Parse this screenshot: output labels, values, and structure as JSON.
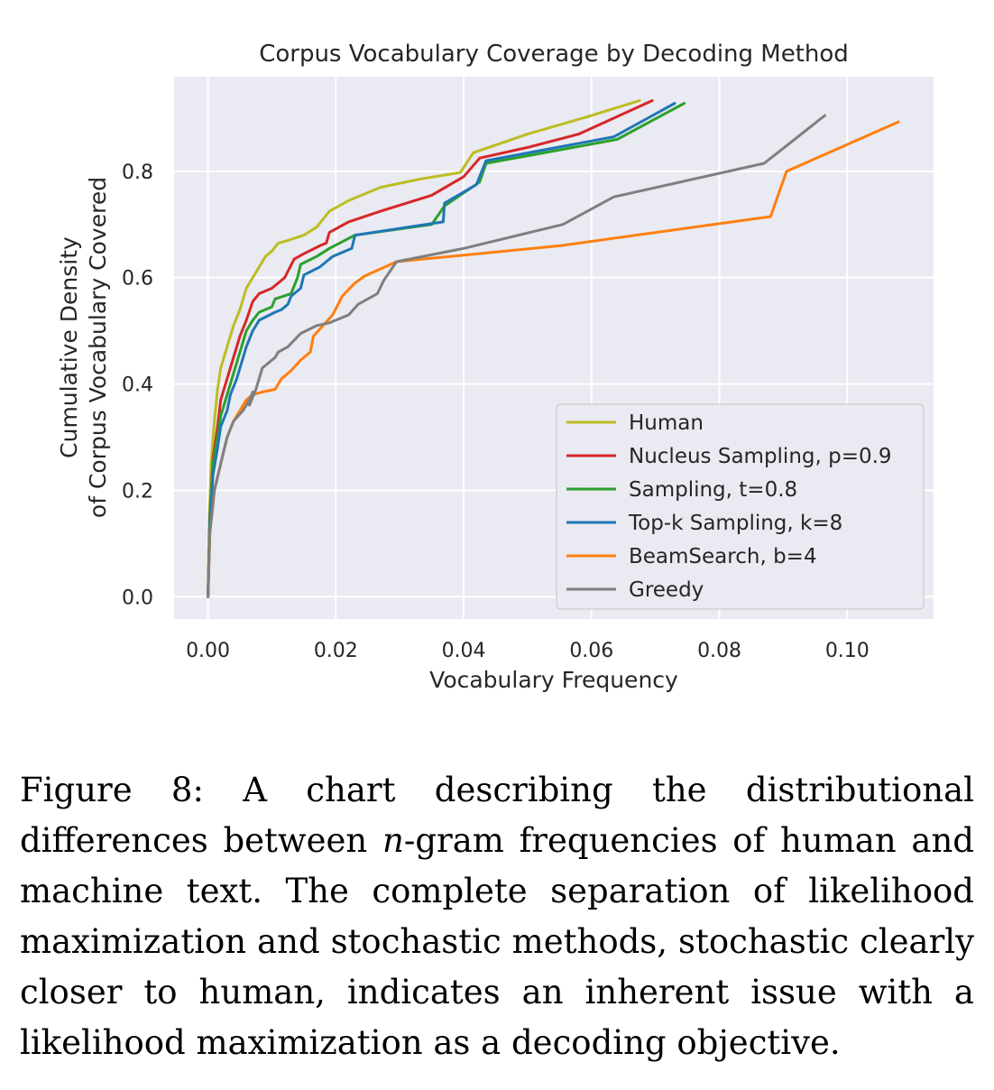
{
  "chart_data": {
    "type": "line",
    "title": "Corpus Vocabulary Coverage by Decoding Method",
    "xlabel": "Vocabulary Frequency",
    "ylabel_lines": [
      "Cumulative Density",
      "of Corpus Vocabulary Covered"
    ],
    "xlim": [
      -0.0053,
      0.1135
    ],
    "ylim": [
      -0.042,
      0.978
    ],
    "x_ticks": [
      {
        "value": 0.0,
        "label": "0.00"
      },
      {
        "value": 0.02,
        "label": "0.02"
      },
      {
        "value": 0.04,
        "label": "0.04"
      },
      {
        "value": 0.06,
        "label": "0.06"
      },
      {
        "value": 0.08,
        "label": "0.08"
      },
      {
        "value": 0.1,
        "label": "0.10"
      }
    ],
    "y_ticks": [
      {
        "value": 0.0,
        "label": "0.0"
      },
      {
        "value": 0.2,
        "label": "0.2"
      },
      {
        "value": 0.4,
        "label": "0.4"
      },
      {
        "value": 0.6,
        "label": "0.6"
      },
      {
        "value": 0.8,
        "label": "0.8"
      }
    ],
    "grid": true,
    "legend_position": "lower-right",
    "series": [
      {
        "name": "Human",
        "color": "#bcbd22",
        "points": [
          [
            0,
            0
          ],
          [
            0.0002,
            0.15
          ],
          [
            0.0005,
            0.25
          ],
          [
            0.001,
            0.33
          ],
          [
            0.0015,
            0.39
          ],
          [
            0.002,
            0.43
          ],
          [
            0.003,
            0.47
          ],
          [
            0.004,
            0.51
          ],
          [
            0.005,
            0.54
          ],
          [
            0.006,
            0.58
          ],
          [
            0.007,
            0.6
          ],
          [
            0.008,
            0.62
          ],
          [
            0.009,
            0.64
          ],
          [
            0.01,
            0.65
          ],
          [
            0.011,
            0.665
          ],
          [
            0.0125,
            0.67
          ],
          [
            0.015,
            0.68
          ],
          [
            0.017,
            0.695
          ],
          [
            0.019,
            0.725
          ],
          [
            0.022,
            0.745
          ],
          [
            0.027,
            0.77
          ],
          [
            0.033,
            0.785
          ],
          [
            0.0395,
            0.798
          ],
          [
            0.0415,
            0.835
          ],
          [
            0.05,
            0.87
          ],
          [
            0.06,
            0.905
          ],
          [
            0.0675,
            0.933
          ]
        ]
      },
      {
        "name": "Nucleus Sampling, p=0.9",
        "color": "#d62728",
        "points": [
          [
            0,
            0
          ],
          [
            0.0003,
            0.15
          ],
          [
            0.0008,
            0.26
          ],
          [
            0.0015,
            0.32
          ],
          [
            0.002,
            0.37
          ],
          [
            0.003,
            0.41
          ],
          [
            0.004,
            0.45
          ],
          [
            0.005,
            0.49
          ],
          [
            0.006,
            0.52
          ],
          [
            0.007,
            0.555
          ],
          [
            0.008,
            0.57
          ],
          [
            0.01,
            0.58
          ],
          [
            0.012,
            0.6
          ],
          [
            0.0135,
            0.635
          ],
          [
            0.015,
            0.645
          ],
          [
            0.0175,
            0.66
          ],
          [
            0.0185,
            0.665
          ],
          [
            0.019,
            0.685
          ],
          [
            0.022,
            0.705
          ],
          [
            0.027,
            0.725
          ],
          [
            0.035,
            0.755
          ],
          [
            0.04,
            0.79
          ],
          [
            0.0425,
            0.825
          ],
          [
            0.05,
            0.845
          ],
          [
            0.058,
            0.87
          ],
          [
            0.0695,
            0.933
          ]
        ]
      },
      {
        "name": "Sampling, t=0.8",
        "color": "#2ca02c",
        "points": [
          [
            0,
            0
          ],
          [
            0.0003,
            0.15
          ],
          [
            0.0008,
            0.25
          ],
          [
            0.0015,
            0.3
          ],
          [
            0.002,
            0.34
          ],
          [
            0.003,
            0.38
          ],
          [
            0.004,
            0.42
          ],
          [
            0.005,
            0.46
          ],
          [
            0.006,
            0.5
          ],
          [
            0.007,
            0.52
          ],
          [
            0.008,
            0.535
          ],
          [
            0.01,
            0.545
          ],
          [
            0.0105,
            0.56
          ],
          [
            0.013,
            0.57
          ],
          [
            0.014,
            0.6
          ],
          [
            0.0145,
            0.625
          ],
          [
            0.017,
            0.64
          ],
          [
            0.019,
            0.655
          ],
          [
            0.023,
            0.68
          ],
          [
            0.035,
            0.7
          ],
          [
            0.037,
            0.735
          ],
          [
            0.0425,
            0.78
          ],
          [
            0.0435,
            0.815
          ],
          [
            0.064,
            0.86
          ],
          [
            0.0745,
            0.928
          ]
        ]
      },
      {
        "name": "Top-k Sampling, k=8",
        "color": "#1f77b4",
        "points": [
          [
            0,
            0
          ],
          [
            0.0003,
            0.14
          ],
          [
            0.0008,
            0.23
          ],
          [
            0.0015,
            0.28
          ],
          [
            0.002,
            0.32
          ],
          [
            0.003,
            0.35
          ],
          [
            0.0035,
            0.38
          ],
          [
            0.0045,
            0.41
          ],
          [
            0.005,
            0.43
          ],
          [
            0.006,
            0.47
          ],
          [
            0.007,
            0.5
          ],
          [
            0.008,
            0.52
          ],
          [
            0.0105,
            0.535
          ],
          [
            0.0115,
            0.54
          ],
          [
            0.0125,
            0.55
          ],
          [
            0.013,
            0.565
          ],
          [
            0.0145,
            0.58
          ],
          [
            0.015,
            0.605
          ],
          [
            0.0175,
            0.62
          ],
          [
            0.0195,
            0.64
          ],
          [
            0.0225,
            0.655
          ],
          [
            0.023,
            0.68
          ],
          [
            0.0368,
            0.705
          ],
          [
            0.037,
            0.74
          ],
          [
            0.042,
            0.775
          ],
          [
            0.0435,
            0.82
          ],
          [
            0.0635,
            0.865
          ],
          [
            0.073,
            0.928
          ]
        ]
      },
      {
        "name": "BeamSearch, b=4",
        "color": "#ff7f0e",
        "points": [
          [
            0,
            0
          ],
          [
            0.0003,
            0.12
          ],
          [
            0.001,
            0.2
          ],
          [
            0.002,
            0.25
          ],
          [
            0.003,
            0.3
          ],
          [
            0.004,
            0.33
          ],
          [
            0.005,
            0.35
          ],
          [
            0.006,
            0.37
          ],
          [
            0.007,
            0.38
          ],
          [
            0.0085,
            0.385
          ],
          [
            0.0105,
            0.39
          ],
          [
            0.0115,
            0.41
          ],
          [
            0.013,
            0.425
          ],
          [
            0.0145,
            0.445
          ],
          [
            0.016,
            0.46
          ],
          [
            0.0165,
            0.49
          ],
          [
            0.018,
            0.51
          ],
          [
            0.0195,
            0.53
          ],
          [
            0.021,
            0.565
          ],
          [
            0.023,
            0.59
          ],
          [
            0.0245,
            0.603
          ],
          [
            0.0295,
            0.63
          ],
          [
            0.055,
            0.66
          ],
          [
            0.088,
            0.715
          ],
          [
            0.0905,
            0.8
          ],
          [
            0.108,
            0.893
          ]
        ]
      },
      {
        "name": "Greedy",
        "color": "#7f7f7f",
        "points": [
          [
            0,
            0
          ],
          [
            0.0003,
            0.12
          ],
          [
            0.001,
            0.2
          ],
          [
            0.002,
            0.25
          ],
          [
            0.003,
            0.3
          ],
          [
            0.004,
            0.33
          ],
          [
            0.0055,
            0.35
          ],
          [
            0.0065,
            0.37
          ],
          [
            0.007,
            0.385
          ],
          [
            0.0065,
            0.36
          ],
          [
            0.0075,
            0.39
          ],
          [
            0.008,
            0.41
          ],
          [
            0.0085,
            0.43
          ],
          [
            0.0095,
            0.44
          ],
          [
            0.0105,
            0.45
          ],
          [
            0.011,
            0.46
          ],
          [
            0.0125,
            0.47
          ],
          [
            0.0145,
            0.495
          ],
          [
            0.017,
            0.51
          ],
          [
            0.019,
            0.515
          ],
          [
            0.022,
            0.53
          ],
          [
            0.0235,
            0.55
          ],
          [
            0.0265,
            0.57
          ],
          [
            0.0275,
            0.595
          ],
          [
            0.0295,
            0.63
          ],
          [
            0.04,
            0.655
          ],
          [
            0.0555,
            0.7
          ],
          [
            0.0635,
            0.752
          ],
          [
            0.087,
            0.815
          ],
          [
            0.0965,
            0.905
          ]
        ]
      }
    ]
  },
  "caption": {
    "label": "Figure 8:",
    "text_before_math": " A chart describing the distributional differences between ",
    "math": "n",
    "text_after_math": "-gram frequencies of human and machine text. The complete separation of likelihood maximization and stochastic methods, stochastic clearly closer to human, indicates an inherent issue with a likelihood maximization as a decoding objective."
  }
}
